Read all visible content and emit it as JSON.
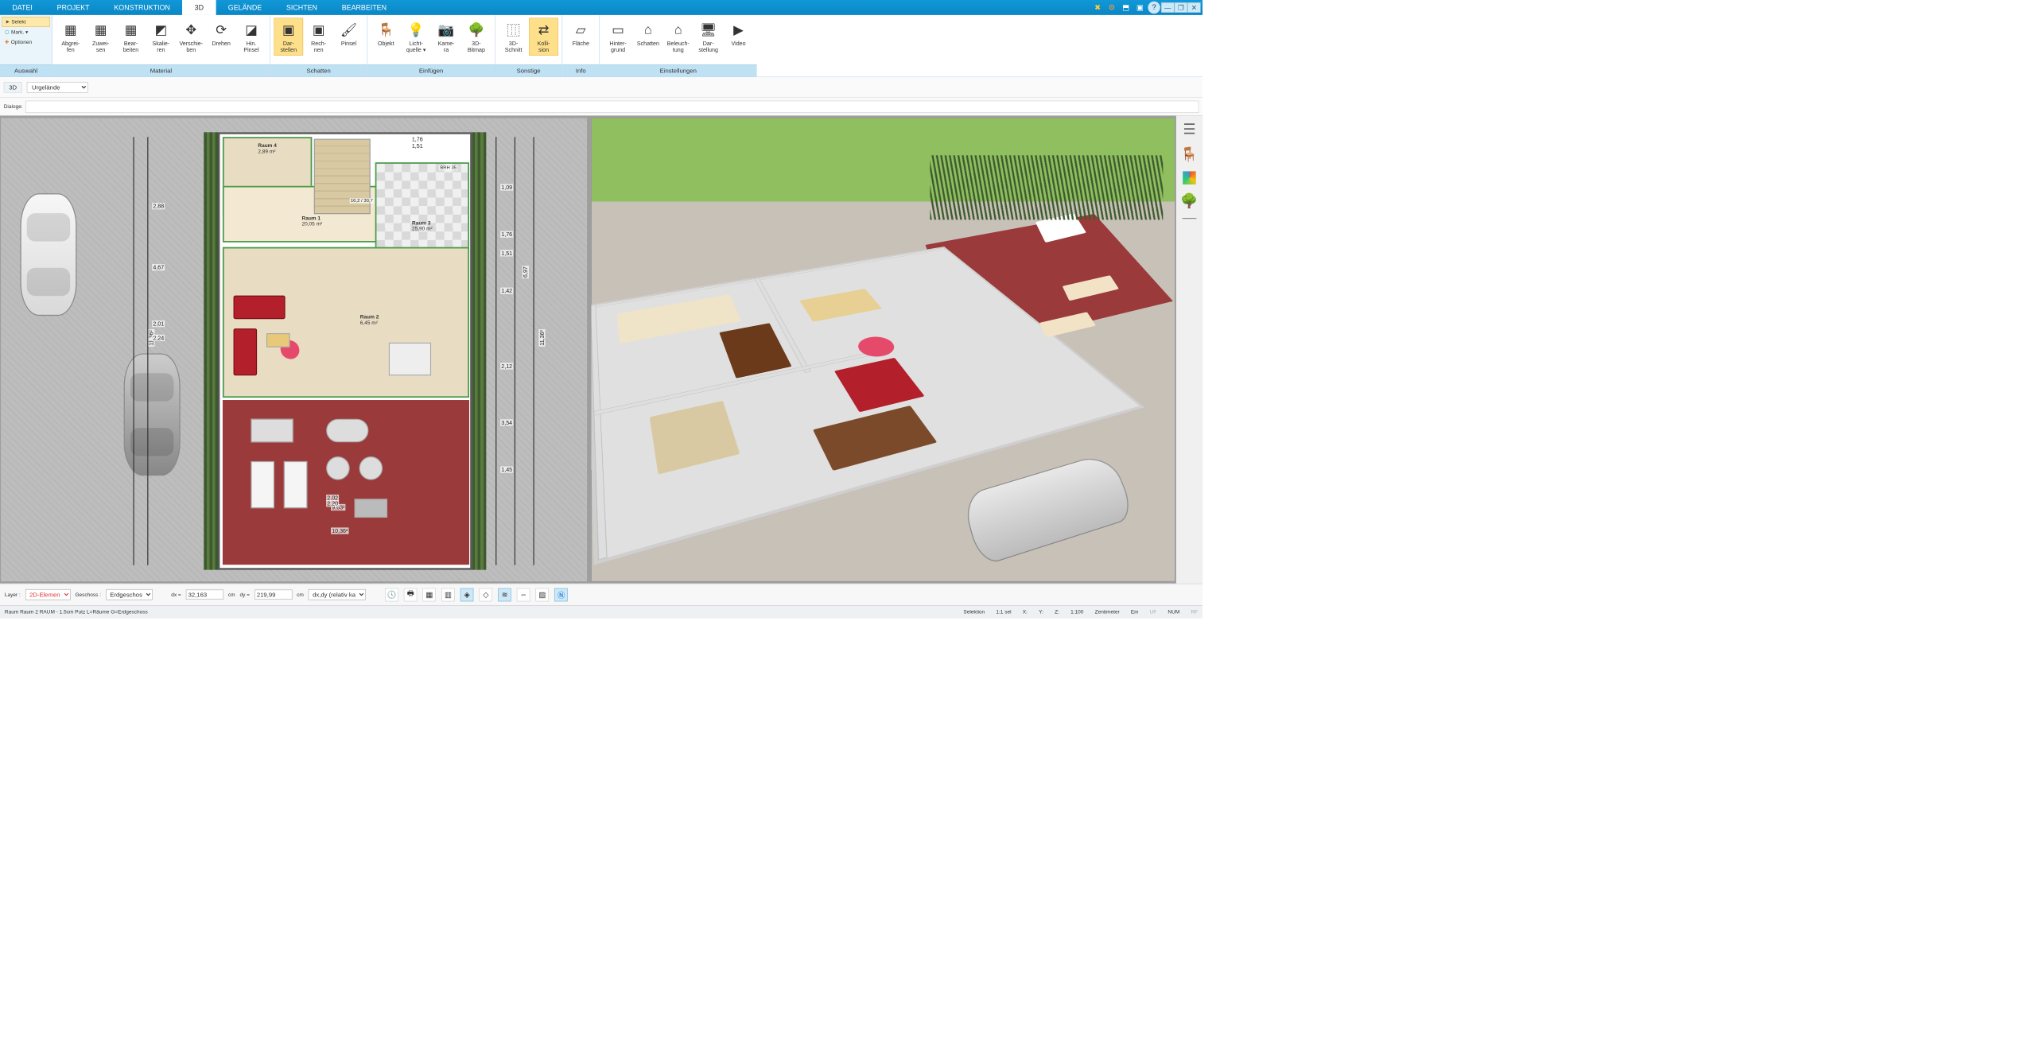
{
  "menu": {
    "tabs": [
      "DATEI",
      "PROJEKT",
      "KONSTRUKTION",
      "3D",
      "GELÄNDE",
      "SICHTEN",
      "BEARBEITEN"
    ],
    "active": 3
  },
  "sysicons": [
    "✖",
    "⚙",
    "⬒",
    "▣",
    "❓"
  ],
  "winbtns": [
    "—",
    "❐",
    "✕"
  ],
  "selection": {
    "selekt": "Selekt",
    "mark": "Mark. ▾",
    "optionen": "Optionen",
    "group": "Auswahl"
  },
  "ribbon": {
    "material": {
      "label": "Material",
      "items": [
        {
          "ico": "▦",
          "lbl": "Abgrei-\nfen"
        },
        {
          "ico": "▦",
          "lbl": "Zuwei-\nsen"
        },
        {
          "ico": "▦",
          "lbl": "Bear-\nbeiten"
        },
        {
          "ico": "◩",
          "lbl": "Skalie-\nren"
        },
        {
          "ico": "✥",
          "lbl": "Verschie-\nben"
        },
        {
          "ico": "⟳",
          "lbl": "Drehen"
        },
        {
          "ico": "◪",
          "lbl": "Hin.\nPinsel"
        }
      ]
    },
    "schatten": {
      "label": "Schatten",
      "items": [
        {
          "ico": "▣",
          "lbl": "Dar-\nstellen",
          "hl": true
        },
        {
          "ico": "▣",
          "lbl": "Rech-\nnen"
        },
        {
          "ico": "🖌",
          "lbl": "Pinsel"
        }
      ]
    },
    "einfuegen": {
      "label": "Einfügen",
      "items": [
        {
          "ico": "🪑",
          "lbl": "Objekt"
        },
        {
          "ico": "💡",
          "lbl": "Licht-\nquelle ▾"
        },
        {
          "ico": "📷",
          "lbl": "Kame-\nra"
        },
        {
          "ico": "🌳",
          "lbl": "3D-\nBitmap"
        }
      ]
    },
    "sonstige": {
      "label": "Sonstige",
      "items": [
        {
          "ico": "⿲",
          "lbl": "3D-\nSchnitt"
        },
        {
          "ico": "⇄",
          "lbl": "Kolli-\nsion",
          "hl": true
        }
      ]
    },
    "info": {
      "label": "Info",
      "items": [
        {
          "ico": "▱",
          "lbl": "Fläche"
        }
      ]
    },
    "einstellungen": {
      "label": "Einstellungen",
      "items": [
        {
          "ico": "▭",
          "lbl": "Hinter-\ngrund"
        },
        {
          "ico": "⌂",
          "lbl": "Schatten"
        },
        {
          "ico": "⌂",
          "lbl": "Beleuch-\ntung"
        },
        {
          "ico": "🖥",
          "lbl": "Dar-\nstellung"
        },
        {
          "ico": "▶",
          "lbl": "Video"
        }
      ]
    }
  },
  "context": {
    "tag": "3D",
    "dropdown": "Urgelände",
    "dialoge": "Dialoge:"
  },
  "rooms": {
    "r4": {
      "name": "Raum 4",
      "area": "2,89 m²"
    },
    "r1": {
      "name": "Raum 1",
      "area": "20,05 m²"
    },
    "r3": {
      "name": "Raum 3",
      "area": "25,90 m²"
    },
    "r2": {
      "name": "Raum 2",
      "area": "6,45 m²"
    }
  },
  "dims": {
    "left_outer": "11,36²",
    "top1": "1,76",
    "top2": "1,51",
    "d288": "2,88",
    "d467": "4,67",
    "d201": "2,01",
    "d224": "2,24",
    "d081": "0,81",
    "d176": "1,76",
    "d151": "1,51",
    "d142": "1,42",
    "d212": "2,12",
    "d354": "3,54",
    "d145": "1,45",
    "d697": "6,97",
    "d109": "1,09",
    "d1036": "10,36²",
    "d963": "9,63²",
    "d202": "2,02",
    "d220": "2,20",
    "d130": "1,30²",
    "brh": "BRH 35",
    "brh85": "BRH 85",
    "fs": "16,2 / 30,7"
  },
  "lowbar": {
    "layer_lbl": "Layer :",
    "layer_val": "2D-Elemen",
    "geschoss_lbl": "Geschoss :",
    "geschoss_val": "Erdgeschos",
    "dx_lbl": "dx =",
    "dx_val": "32,163",
    "dy_lbl": "dy =",
    "dy_val": "219,99",
    "unit": "cm",
    "mode": "dx,dy (relativ ka"
  },
  "status": {
    "left": "Raum Raum 2 RAUM - 1.5cm Putz L=Räume G=Erdgeschoss",
    "selektion": "Selektion",
    "sel": "1:1 sel",
    "x": "X:",
    "y": "Y:",
    "z": "Z:",
    "scale": "1:100",
    "unit": "Zentimeter",
    "ein": "Ein",
    "uf": "UF",
    "num": "NUM",
    "rf": "RF"
  },
  "colors": {
    "accent": "#1198d8",
    "highlight": "#ffe08a",
    "sofa": "#b31f2a",
    "terrace": "#9a3a3a",
    "grass": "#8fbf5f"
  }
}
